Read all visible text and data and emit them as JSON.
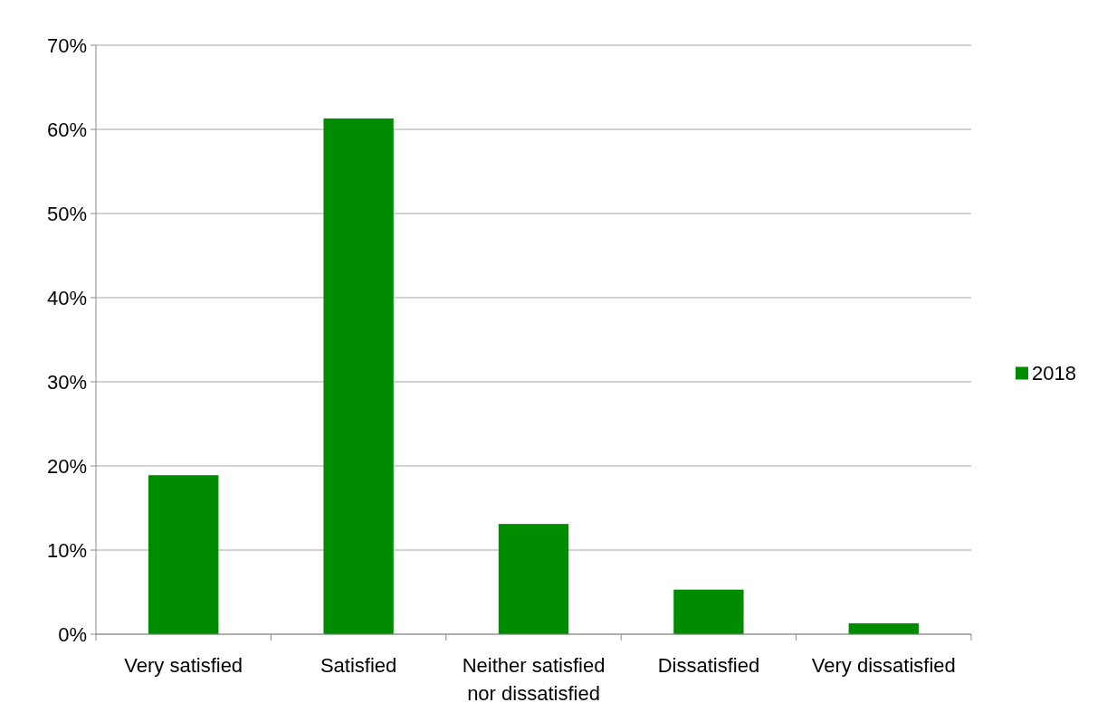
{
  "chart_data": {
    "type": "bar",
    "categories": [
      "Very satisfied",
      "Satisfied",
      "Neither satisfied nor dissatisfied",
      "Dissatisfied",
      "Very dissatisfied"
    ],
    "series": [
      {
        "name": "2018",
        "color": "#008c00",
        "values": [
          18.9,
          61.3,
          13.1,
          5.3,
          1.3
        ]
      }
    ],
    "ylim": [
      0,
      70
    ],
    "yticks": [
      {
        "value": 0,
        "label": "0%"
      },
      {
        "value": 10,
        "label": "10%"
      },
      {
        "value": 20,
        "label": "20%"
      },
      {
        "value": 30,
        "label": "30%"
      },
      {
        "value": 40,
        "label": "40%"
      },
      {
        "value": 50,
        "label": "50%"
      },
      {
        "value": 60,
        "label": "60%"
      },
      {
        "value": 70,
        "label": "70%"
      }
    ],
    "grid": "y",
    "legend": "right"
  }
}
